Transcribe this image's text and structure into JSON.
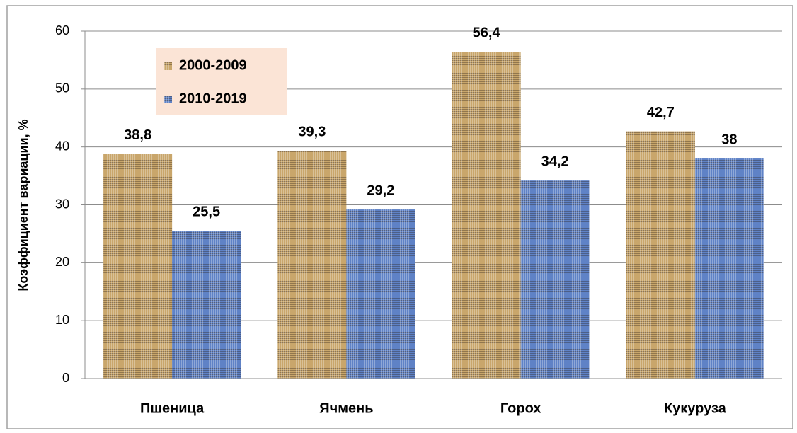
{
  "chart_data": {
    "type": "bar",
    "y_label": "Коэффициент вариации, %",
    "categories": [
      "Пшеница",
      "Ячмень",
      "Горох",
      "Кукуруза"
    ],
    "series": [
      {
        "name": "2000-2009",
        "color": "#c9a66b",
        "values": [
          38.8,
          39.3,
          56.4,
          42.7
        ],
        "value_labels": [
          "38,8",
          "39,3",
          "56,4",
          "42,7"
        ]
      },
      {
        "name": "2010-2019",
        "color": "#5f82c6",
        "values": [
          25.5,
          29.2,
          34.2,
          38
        ],
        "value_labels": [
          "25,5",
          "29,2",
          "34,2",
          "38"
        ]
      }
    ],
    "ylim": [
      0,
      60
    ],
    "yticks": [
      0,
      10,
      20,
      30,
      40,
      50,
      60
    ],
    "grid": true,
    "legend": "upper left"
  }
}
